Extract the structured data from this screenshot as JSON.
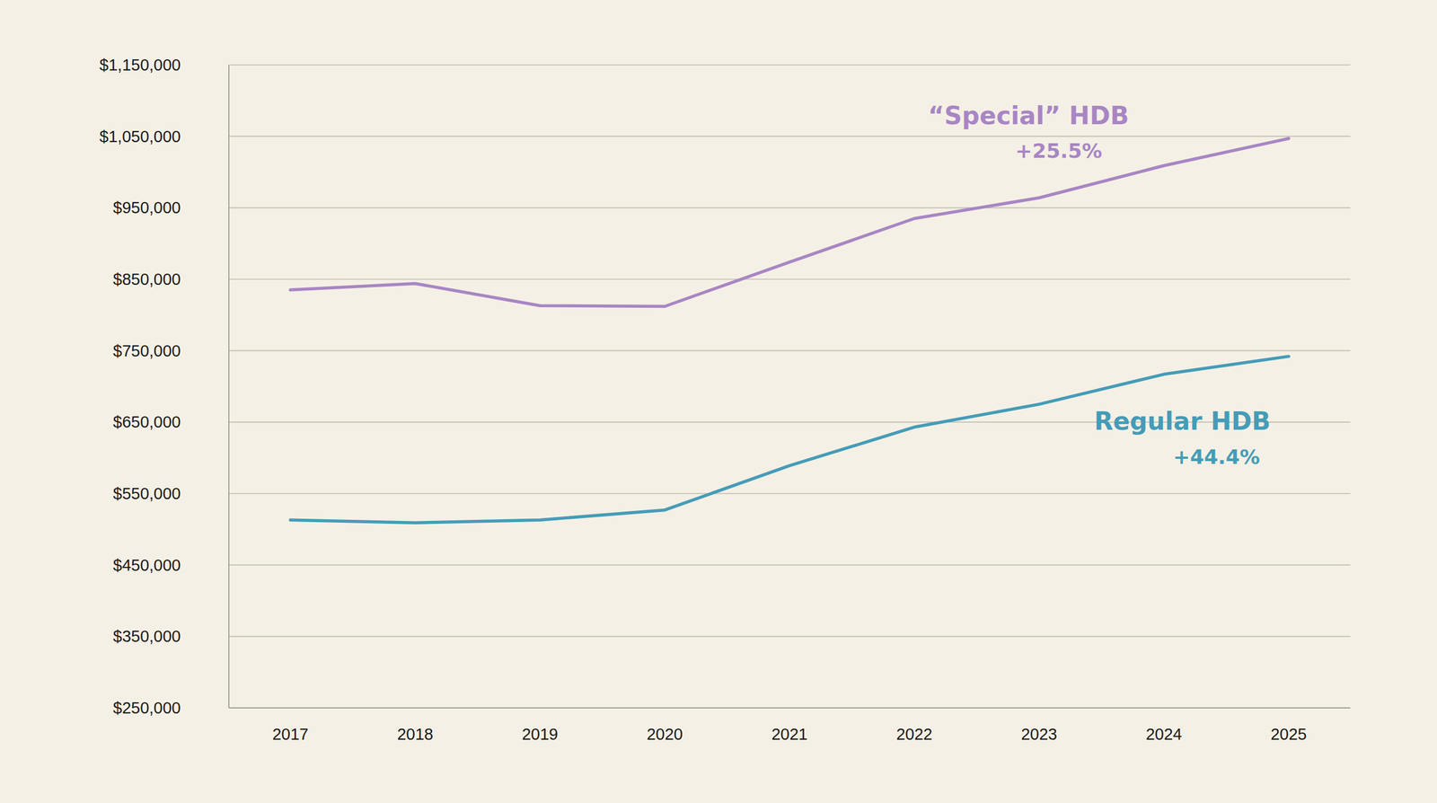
{
  "chart_data": {
    "type": "line",
    "categories": [
      "2017",
      "2018",
      "2019",
      "2020",
      "2021",
      "2022",
      "2023",
      "2024",
      "2025"
    ],
    "series": [
      {
        "name": "“Special” HDB",
        "color": "#a886c4",
        "values": [
          835000,
          844000,
          813000,
          812000,
          874000,
          935000,
          964000,
          1009000,
          1047000
        ]
      },
      {
        "name": "Regular HDB",
        "color": "#459cb8",
        "values": [
          513000,
          509000,
          513000,
          527000,
          589000,
          643000,
          675000,
          717000,
          742000
        ]
      }
    ],
    "annotations": [
      {
        "text": "+25.5%"
      },
      {
        "text": "+44.4%"
      }
    ],
    "ylim": [
      250000,
      1150000
    ],
    "yticks": [
      {
        "value": 250000,
        "label": "$250,000"
      },
      {
        "value": 350000,
        "label": "$350,000"
      },
      {
        "value": 450000,
        "label": "$450,000"
      },
      {
        "value": 550000,
        "label": "$550,000"
      },
      {
        "value": 650000,
        "label": "$650,000"
      },
      {
        "value": 750000,
        "label": "$750,000"
      },
      {
        "value": 850000,
        "label": "$850,000"
      },
      {
        "value": 950000,
        "label": "$950,000"
      },
      {
        "value": 1050000,
        "label": "$1,050,000"
      },
      {
        "value": 1150000,
        "label": "$1,150,000"
      }
    ],
    "grid": true
  }
}
